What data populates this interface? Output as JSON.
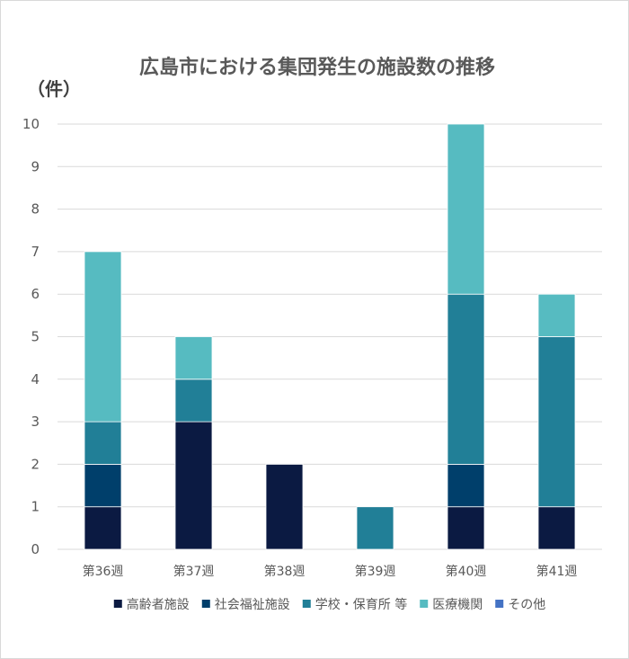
{
  "chart_data": {
    "type": "bar",
    "stacked": true,
    "title": "広島市における集団発生の施設数の推移",
    "ylabel": "（件）",
    "xlabel": "",
    "ylim": [
      0,
      10
    ],
    "yticks": [
      0,
      1,
      2,
      3,
      4,
      5,
      6,
      7,
      8,
      9,
      10
    ],
    "grid": true,
    "legend_position": "bottom",
    "categories": [
      "第36週",
      "第37週",
      "第38週",
      "第39週",
      "第40週",
      "第41週"
    ],
    "series": [
      {
        "name": "高齢者施設",
        "color": "#0b1a42",
        "values": [
          1,
          3,
          2,
          0,
          1,
          1
        ]
      },
      {
        "name": "社会福祉施設",
        "color": "#003f6b",
        "values": [
          1,
          0,
          0,
          0,
          1,
          0
        ]
      },
      {
        "name": "学校・保育所 等",
        "color": "#217f97",
        "values": [
          1,
          1,
          0,
          1,
          4,
          4
        ]
      },
      {
        "name": "医療機関",
        "color": "#56bbc1",
        "values": [
          4,
          1,
          0,
          0,
          4,
          1
        ]
      },
      {
        "name": "その他",
        "color": "#4472c4",
        "values": [
          0,
          0,
          0,
          0,
          0,
          0
        ]
      }
    ]
  }
}
